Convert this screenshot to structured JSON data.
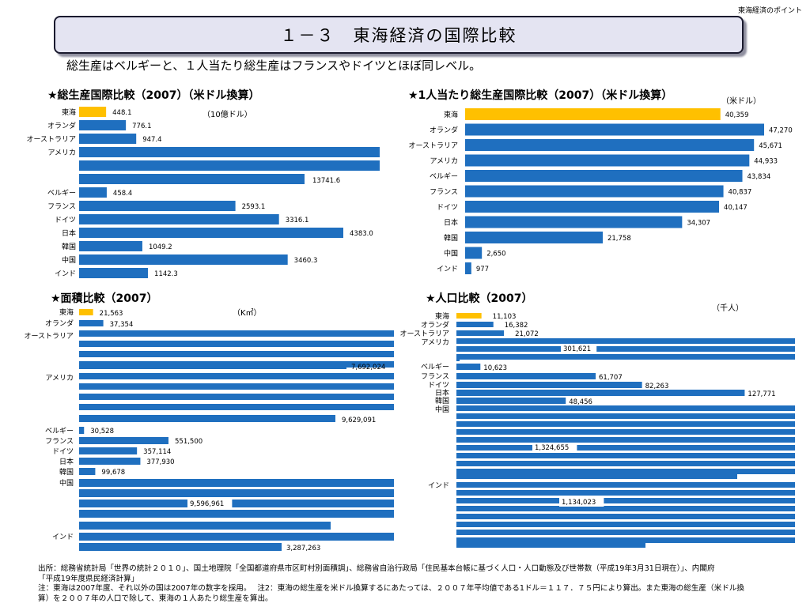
{
  "header": {
    "top_right": "東海経済のポイント",
    "title": "１－３　東海経済の国際比較",
    "subtitle": "総生産はベルギーと、１人当たり総生産はフランスやドイツとほぼ同レベル。"
  },
  "colors": {
    "highlight": "#FFC000",
    "bar": "#1F6FBF"
  },
  "chart_data": [
    {
      "type": "bar",
      "orientation": "horizontal",
      "title": "★総生産国際比較（2007）（米ドル換算）",
      "unit": "（10億ドル）",
      "categories": [
        "東海",
        "オランダ",
        "オーストラリア",
        "アメリカ",
        "ベルギー",
        "フランス",
        "ドイツ",
        "日本",
        "韓国",
        "中国",
        "インド"
      ],
      "values": [
        448.1,
        776.1,
        947.4,
        13741.6,
        458.4,
        2593.1,
        3316.1,
        4383.0,
        1049.2,
        3460.3,
        1142.3
      ],
      "value_labels": [
        "448.1",
        "776.1",
        "947.4",
        "13741.6",
        "458.4",
        "2593.1",
        "3316.1",
        "4383.0",
        "1049.2",
        "3460.3",
        "1142.3"
      ],
      "highlight": [
        0
      ]
    },
    {
      "type": "bar",
      "orientation": "horizontal",
      "title": "★1人当たり総生産国際比較（2007）（米ドル換算）",
      "unit": "（米ドル）",
      "categories": [
        "東海",
        "オランダ",
        "オーストラリア",
        "アメリカ",
        "ベルギー",
        "フランス",
        "ドイツ",
        "日本",
        "韓国",
        "中国",
        "インド"
      ],
      "values": [
        40359,
        47270,
        45671,
        44933,
        43834,
        40837,
        40147,
        34307,
        21758,
        2650,
        977
      ],
      "value_labels": [
        "40,359",
        "47,270",
        "45,671",
        "44,933",
        "43,834",
        "40,837",
        "40,147",
        "34,307",
        "21,758",
        "2,650",
        "977"
      ],
      "highlight": [
        0
      ]
    },
    {
      "type": "bar",
      "orientation": "horizontal",
      "title": "★面積比較（2007）",
      "unit": "（K㎡）",
      "categories": [
        "東海",
        "オランダ",
        "オーストラリア",
        "アメリカ",
        "ベルギー",
        "フランス",
        "ドイツ",
        "日本",
        "韓国",
        "中国",
        "インド"
      ],
      "values": [
        21563,
        37354,
        7692024,
        9629091,
        30528,
        551500,
        357114,
        377930,
        99678,
        9596961,
        3287263
      ],
      "value_labels": [
        "21,563",
        "37,354",
        "7,692,024",
        "9,629,091",
        "30,528",
        "551,500",
        "357,114",
        "377,930",
        "99,678",
        "9,596,961",
        "3,287,263"
      ],
      "highlight": [
        0
      ]
    },
    {
      "type": "bar",
      "orientation": "horizontal",
      "title": "★人口比較（2007）",
      "unit": "（千人）",
      "categories": [
        "東海",
        "オランダ",
        "オーストラリア",
        "アメリカ",
        "ベルギー",
        "フランス",
        "ドイツ",
        "日本",
        "韓国",
        "中国",
        "インド"
      ],
      "values": [
        11103,
        16382,
        21072,
        301621,
        10623,
        61707,
        82263,
        127771,
        48456,
        1324655,
        1134023
      ],
      "value_labels": [
        "11,103",
        "16,382",
        "21,072",
        "301,621",
        "10,623",
        "61,707",
        "82,263",
        "127,771",
        "48,456",
        "1,324,655",
        "1,134,023"
      ],
      "highlight": [
        0
      ]
    }
  ],
  "footer": {
    "line1": "出所：総務省統計局「世界の統計２０１０」、国土地理院「全国都道府県市区町村別面積調」、総務省自治行政局「住民基本台帳に基づく人口・人口動態及び世帯数（平成19年3月31日現在）」、内閣府",
    "line2": "「平成19年度県民経済計算」",
    "line3": "注：東海は2007年度、それ以外の国は2007年の数字を採用。　 注2：東海の総生産を米ドル換算するにあたっては、２００７年平均値である1ドル＝１１７．７５円により算出。また東海の総生産（米ドル換",
    "line4": "算）を２００７年の人口で除して、東海の１人あたり総生産を算出。"
  }
}
